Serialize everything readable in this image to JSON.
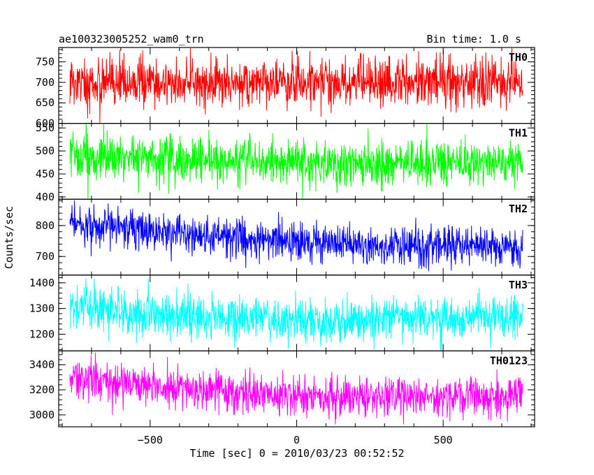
{
  "chart_data": {
    "type": "line",
    "title": "ae100323005252_wam0_trn",
    "subtitle": "Bin time: 1.0 s",
    "xlabel": "Time [sec] 0 = 2010/03/23 00:52:52",
    "ylabel": "Counts/sec",
    "x_range": [
      -812,
      812
    ],
    "x_ticks": [
      -500,
      0,
      500
    ],
    "x_tick_labels": [
      "−500",
      "0",
      "500"
    ],
    "bin_time_s": 1.0,
    "grid": false,
    "legend": "none",
    "panels": [
      {
        "name": "TH0",
        "color": "#ff0000",
        "ylim": [
          600,
          785
        ],
        "yticks": [
          600,
          650,
          700,
          750
        ],
        "tick_labels": [
          "600",
          "650",
          "700",
          "750"
        ],
        "trend": [
          [
            -800,
            700
          ],
          [
            0,
            698
          ],
          [
            800,
            703
          ]
        ],
        "noise": 28,
        "spike_rate": 0.06,
        "spike_amp": 45
      },
      {
        "name": "TH1",
        "color": "#00ff00",
        "ylim": [
          395,
          560
        ],
        "yticks": [
          400,
          450,
          500,
          550
        ],
        "tick_labels": [
          "400",
          "450",
          "500",
          "550"
        ],
        "trend": [
          [
            -800,
            490
          ],
          [
            -300,
            478
          ],
          [
            0,
            474
          ],
          [
            400,
            472
          ],
          [
            800,
            478
          ]
        ],
        "noise": 22,
        "spike_rate": 0.05,
        "spike_amp": 40
      },
      {
        "name": "TH2",
        "color": "#0000ff",
        "ylim": [
          640,
          885
        ],
        "yticks": [
          700,
          800
        ],
        "tick_labels": [
          "700",
          "800"
        ],
        "trend": [
          [
            -800,
            805
          ],
          [
            -400,
            775
          ],
          [
            0,
            748
          ],
          [
            300,
            732
          ],
          [
            600,
            738
          ],
          [
            800,
            728
          ]
        ],
        "noise": 28,
        "spike_rate": 0.05,
        "spike_amp": 50
      },
      {
        "name": "TH3",
        "color": "#00ffff",
        "ylim": [
          1135,
          1430
        ],
        "yticks": [
          1200,
          1300,
          1400
        ],
        "tick_labels": [
          "1200",
          "1300",
          "1400"
        ],
        "trend": [
          [
            -800,
            1310
          ],
          [
            -300,
            1265
          ],
          [
            0,
            1255
          ],
          [
            300,
            1258
          ],
          [
            800,
            1275
          ]
        ],
        "noise": 40,
        "spike_rate": 0.05,
        "spike_amp": 70
      },
      {
        "name": "TH0123",
        "color": "#ff00ff",
        "ylim": [
          2905,
          3510
        ],
        "yticks": [
          3000,
          3200,
          3400
        ],
        "tick_labels": [
          "3000",
          "3200",
          "3400"
        ],
        "trend": [
          [
            -800,
            3300
          ],
          [
            -400,
            3215
          ],
          [
            0,
            3150
          ],
          [
            400,
            3140
          ],
          [
            800,
            3165
          ]
        ],
        "noise": 75,
        "spike_rate": 0.05,
        "spike_amp": 120
      }
    ]
  }
}
